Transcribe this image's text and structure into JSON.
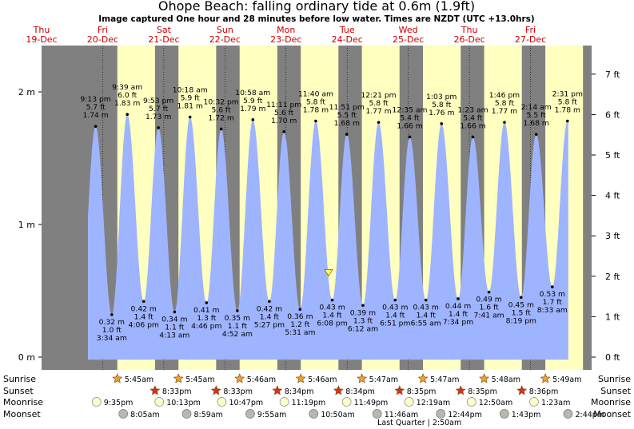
{
  "title": "Ohope Beach: falling  ordinary tide at 0.6m (1.9ft)",
  "subtitle": "Image captured One hour and 28 minutes before low water. Times are NZDT (UTC +13.0hrs)",
  "colors": {
    "night": "#808080",
    "day": "#ffffc0",
    "tide": "#9fb4ff",
    "sunrise_star": "#f0a030",
    "sunset_star": "#d83020",
    "moonrise": "#ffffc8",
    "moonset": "#b8b8b0",
    "day_label": "#cc0000"
  },
  "icons": {
    "sunrise": "star-icon",
    "sunset": "star-icon",
    "moonrise": "moon-icon",
    "moonset": "moon-icon",
    "current": "triangle-marker-icon"
  },
  "chart_data": {
    "type": "area",
    "title": "Ohope Beach: falling  ordinary tide at 0.6m (1.9ft)",
    "subtitle": "Image captured One hour and 28 minutes before low water. Times are NZDT (UTC +13.0hrs)",
    "x_unit": "hours from 00:00 19-Dec (NZDT)",
    "y_left_ticks": [
      {
        "value": 0,
        "label": "0 m"
      },
      {
        "value": 1,
        "label": "1 m"
      },
      {
        "value": 2,
        "label": "2 m"
      }
    ],
    "y_right_ticks": [
      {
        "ft": 0,
        "label": "0 ft"
      },
      {
        "ft": 1,
        "label": "1 ft"
      },
      {
        "ft": 2,
        "label": "2 ft"
      },
      {
        "ft": 3,
        "label": "3 ft"
      },
      {
        "ft": 4,
        "label": "4 ft"
      },
      {
        "ft": 5,
        "label": "5 ft"
      },
      {
        "ft": 6,
        "label": "6 ft"
      },
      {
        "ft": 7,
        "label": "7 ft"
      }
    ],
    "ylim_m": [
      0,
      2.38
    ],
    "xlim_hours": [
      0,
      216
    ],
    "days": [
      {
        "name": "Thu",
        "date": "19-Dec",
        "hour": 0
      },
      {
        "name": "Fri",
        "date": "20-Dec",
        "hour": 24
      },
      {
        "name": "Sat",
        "date": "21-Dec",
        "hour": 48
      },
      {
        "name": "Sun",
        "date": "22-Dec",
        "hour": 72
      },
      {
        "name": "Mon",
        "date": "23-Dec",
        "hour": 96
      },
      {
        "name": "Tue",
        "date": "24-Dec",
        "hour": 120
      },
      {
        "name": "Wed",
        "date": "25-Dec",
        "hour": 144
      },
      {
        "name": "Thu",
        "date": "26-Dec",
        "hour": 168
      },
      {
        "name": "Fri",
        "date": "27-Dec",
        "hour": 192
      }
    ],
    "daylight": [
      {
        "sunrise": 29.75,
        "sunset": 44.55
      },
      {
        "sunrise": 53.75,
        "sunset": 68.55
      },
      {
        "sunrise": 77.77,
        "sunset": 92.57
      },
      {
        "sunrise": 101.77,
        "sunset": 116.57
      },
      {
        "sunrise": 125.78,
        "sunset": 140.58
      },
      {
        "sunrise": 149.78,
        "sunset": 164.58
      },
      {
        "sunrise": 173.8,
        "sunset": 188.6
      },
      {
        "sunrise": 197.82,
        "sunset": 212.6
      }
    ],
    "tides": [
      {
        "hour": 21.22,
        "m": 1.74,
        "time": "9:13 pm",
        "ft": "5.7 ft",
        "m_label": "1.74 m",
        "type": "high"
      },
      {
        "hour": 27.57,
        "m": 0.32,
        "time": "3:34 am",
        "ft": "1.0 ft",
        "m_label": "0.32 m",
        "type": "low"
      },
      {
        "hour": 33.65,
        "m": 1.83,
        "time": "9:39 am",
        "ft": "6.0 ft",
        "m_label": "1.83 m",
        "type": "high"
      },
      {
        "hour": 40.1,
        "m": 0.42,
        "time": "4:06 pm",
        "ft": "1.4 ft",
        "m_label": "0.42 m",
        "type": "low"
      },
      {
        "hour": 45.88,
        "m": 1.73,
        "time": "9:53 pm",
        "ft": "5.7 ft",
        "m_label": "1.73 m",
        "type": "high"
      },
      {
        "hour": 52.22,
        "m": 0.34,
        "time": "4:13 am",
        "ft": "1.1 ft",
        "m_label": "0.34 m",
        "type": "low"
      },
      {
        "hour": 58.3,
        "m": 1.81,
        "time": "10:18 am",
        "ft": "5.9 ft",
        "m_label": "1.81 m",
        "type": "high"
      },
      {
        "hour": 64.77,
        "m": 0.41,
        "time": "4:46 pm",
        "ft": "1.3 ft",
        "m_label": "0.41 m",
        "type": "low"
      },
      {
        "hour": 70.53,
        "m": 1.72,
        "time": "10:32 pm",
        "ft": "5.6 ft",
        "m_label": "1.72 m",
        "type": "high"
      },
      {
        "hour": 76.87,
        "m": 0.35,
        "time": "4:52 am",
        "ft": "1.1 ft",
        "m_label": "0.35 m",
        "type": "low"
      },
      {
        "hour": 82.97,
        "m": 1.79,
        "time": "10:58 am",
        "ft": "5.9 ft",
        "m_label": "1.79 m",
        "type": "high"
      },
      {
        "hour": 89.45,
        "m": 0.42,
        "time": "5:27 pm",
        "ft": "1.4 ft",
        "m_label": "0.42 m",
        "type": "low"
      },
      {
        "hour": 95.18,
        "m": 1.7,
        "time": "11:11 pm",
        "ft": "5.6 ft",
        "m_label": "1.70 m",
        "type": "high"
      },
      {
        "hour": 101.52,
        "m": 0.36,
        "time": "5:31 am",
        "ft": "1.2 ft",
        "m_label": "0.36 m",
        "type": "low"
      },
      {
        "hour": 107.67,
        "m": 1.78,
        "time": "11:40 am",
        "ft": "5.8 ft",
        "m_label": "1.78 m",
        "type": "high"
      },
      {
        "hour": 114.13,
        "m": 0.43,
        "time": "6:08 pm",
        "ft": "1.4 ft",
        "m_label": "0.43 m",
        "type": "low"
      },
      {
        "hour": 119.85,
        "m": 1.68,
        "time": "11:51 pm",
        "ft": "5.5 ft",
        "m_label": "1.68 m",
        "type": "high"
      },
      {
        "hour": 126.2,
        "m": 0.39,
        "time": "6:12 am",
        "ft": "1.3 ft",
        "m_label": "0.39 m",
        "type": "low"
      },
      {
        "hour": 132.35,
        "m": 1.77,
        "time": "12:21 pm",
        "ft": "5.8 ft",
        "m_label": "1.77 m",
        "type": "high"
      },
      {
        "hour": 138.85,
        "m": 0.43,
        "time": "6:51 pm",
        "ft": "1.4 ft",
        "m_label": "0.43 m",
        "type": "low"
      },
      {
        "hour": 144.58,
        "m": 1.66,
        "time": "12:35 am",
        "ft": "5.4 ft",
        "m_label": "1.66 m",
        "type": "high"
      },
      {
        "hour": 150.92,
        "m": 0.43,
        "time": "6:55 am",
        "ft": "1.4 ft",
        "m_label": "0.43 m",
        "type": "low"
      },
      {
        "hour": 157.05,
        "m": 1.76,
        "time": "1:03 pm",
        "ft": "5.8 ft",
        "m_label": "1.76 m",
        "type": "high"
      },
      {
        "hour": 163.57,
        "m": 0.44,
        "time": "7:34 pm",
        "ft": "1.4 ft",
        "m_label": "0.44 m",
        "type": "low"
      },
      {
        "hour": 169.38,
        "m": 1.66,
        "time": "1:23 am",
        "ft": "5.4 ft",
        "m_label": "1.66 m",
        "type": "high"
      },
      {
        "hour": 175.68,
        "m": 0.49,
        "time": "7:41 am",
        "ft": "1.6 ft",
        "m_label": "0.49 m",
        "type": "low"
      },
      {
        "hour": 181.77,
        "m": 1.77,
        "time": "1:46 pm",
        "ft": "5.8 ft",
        "m_label": "1.77 m",
        "type": "high"
      },
      {
        "hour": 188.32,
        "m": 0.45,
        "time": "8:19 pm",
        "ft": "1.5 ft",
        "m_label": "0.45 m",
        "type": "low"
      },
      {
        "hour": 194.23,
        "m": 1.68,
        "time": "2:14 am",
        "ft": "5.5 ft",
        "m_label": "1.68 m",
        "type": "high"
      },
      {
        "hour": 200.55,
        "m": 0.53,
        "time": "8:33 am",
        "ft": "1.7 ft",
        "m_label": "0.53 m",
        "type": "low"
      },
      {
        "hour": 206.52,
        "m": 1.78,
        "time": "2:31 pm",
        "ft": "5.8 ft",
        "m_label": "1.78 m",
        "type": "high"
      }
    ],
    "current_marker": {
      "hour": 112.7,
      "m": 0.6
    },
    "row_labels": [
      "Sunrise",
      "Sunset",
      "Moonrise",
      "Moonset"
    ],
    "sunrise": [
      {
        "hour": 29.75,
        "label": "5:45am"
      },
      {
        "hour": 53.75,
        "label": "5:45am"
      },
      {
        "hour": 77.77,
        "label": "5:46am"
      },
      {
        "hour": 101.77,
        "label": "5:46am"
      },
      {
        "hour": 125.78,
        "label": "5:47am"
      },
      {
        "hour": 149.78,
        "label": "5:47am"
      },
      {
        "hour": 173.8,
        "label": "5:48am"
      },
      {
        "hour": 197.82,
        "label": "5:49am"
      }
    ],
    "sunset": [
      {
        "hour": 44.55,
        "label": "8:33pm"
      },
      {
        "hour": 68.55,
        "label": "8:33pm"
      },
      {
        "hour": 92.57,
        "label": "8:34pm"
      },
      {
        "hour": 116.57,
        "label": "8:34pm"
      },
      {
        "hour": 140.58,
        "label": "8:35pm"
      },
      {
        "hour": 164.58,
        "label": "8:35pm"
      },
      {
        "hour": 188.6,
        "label": "8:36pm"
      }
    ],
    "moonrise": [
      {
        "hour": 21.58,
        "label": "9:35pm"
      },
      {
        "hour": 46.22,
        "label": "10:13pm"
      },
      {
        "hour": 70.78,
        "label": "10:47pm"
      },
      {
        "hour": 95.32,
        "label": "11:19pm"
      },
      {
        "hour": 119.82,
        "label": "11:49pm"
      },
      {
        "hour": 144.32,
        "label": "12:19am"
      },
      {
        "hour": 168.83,
        "label": "12:50am"
      },
      {
        "hour": 193.38,
        "label": "1:23am"
      }
    ],
    "moonset": [
      {
        "hour": 32.08,
        "label": "8:05am"
      },
      {
        "hour": 56.98,
        "label": "8:59am"
      },
      {
        "hour": 81.92,
        "label": "9:55am"
      },
      {
        "hour": 106.83,
        "label": "10:50am"
      },
      {
        "hour": 131.77,
        "label": "11:46am"
      },
      {
        "hour": 156.73,
        "label": "12:44pm"
      },
      {
        "hour": 181.72,
        "label": "1:43pm"
      },
      {
        "hour": 206.73,
        "label": "2:44pm"
      }
    ],
    "moon_phase": {
      "hour": 146.83,
      "label": "Last Quarter | 2:50am"
    }
  }
}
